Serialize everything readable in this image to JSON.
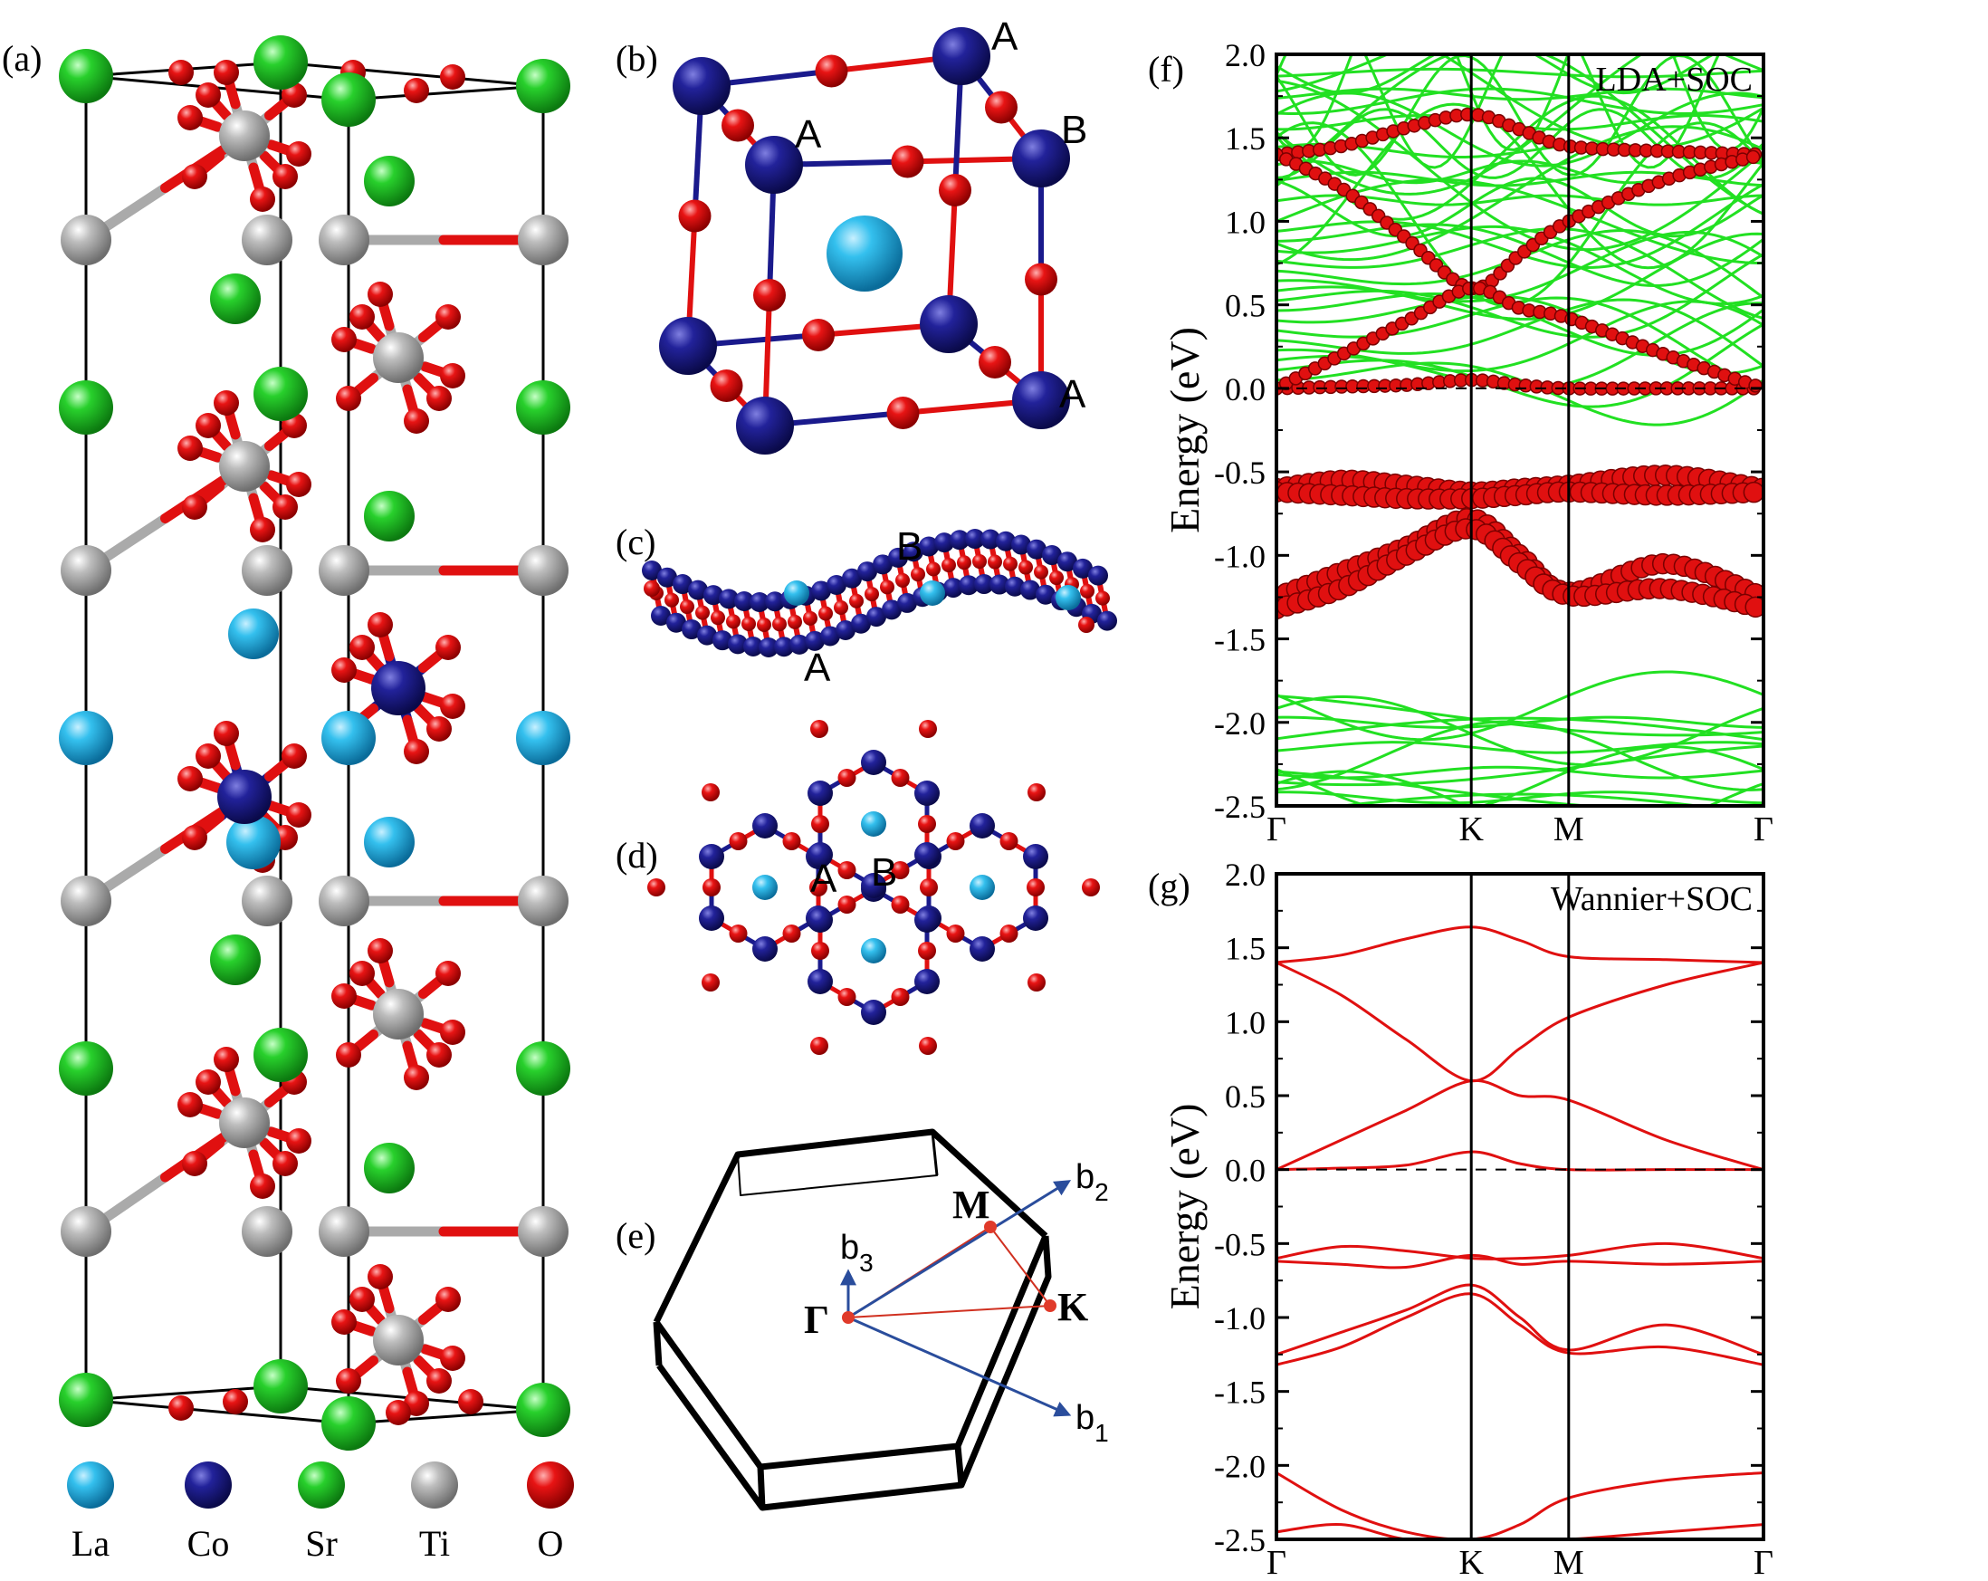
{
  "panels": {
    "a": "(a)",
    "b": "(b)",
    "c": "(c)",
    "d": "(d)",
    "e": "(e)",
    "f": "(f)",
    "g": "(g)"
  },
  "legend": {
    "items": [
      {
        "label": "La",
        "color": "#29b6e6"
      },
      {
        "label": "Co",
        "color": "#1a1a8c"
      },
      {
        "label": "Sr",
        "color": "#22cc2a"
      },
      {
        "label": "Ti",
        "color": "#b4b4b4"
      },
      {
        "label": "O",
        "color": "#e01010"
      }
    ]
  },
  "site_labels": {
    "A": "A",
    "B": "B"
  },
  "bz": {
    "gamma": "Γ",
    "K": "K",
    "M": "M",
    "b1": "b",
    "b1_sub": "1",
    "b2": "b",
    "b2_sub": "2",
    "b3": "b",
    "b3_sub": "3"
  },
  "colors": {
    "la": "#29b6e6",
    "co": "#1a1a8c",
    "sr": "#22cc2a",
    "ti": "#b4b4b4",
    "o": "#e01010",
    "band_green": "#22e022",
    "band_red": "#e01010",
    "vector_blue": "#2a4d9c"
  },
  "chart_data": [
    {
      "type": "line",
      "panel": "f",
      "annotation": "LDA+SOC",
      "ylabel": "Energy (eV)",
      "ylim": [
        -2.5,
        2.0
      ],
      "yticks": [
        "2.0",
        "1.5",
        "1.0",
        "0.5",
        "0.0",
        "-0.5",
        "-1.0",
        "-1.5",
        "-2.0",
        "-2.5"
      ],
      "kpath": [
        "Γ",
        "K",
        "M",
        "Γ"
      ],
      "kpos": [
        0,
        0.4,
        0.6,
        1.0
      ],
      "series": [
        {
          "values": [
            1.4,
            1.45,
            1.56,
            1.64,
            1.55,
            1.45,
            1.42,
            1.4
          ]
        },
        {
          "values": [
            1.4,
            1.2,
            0.9,
            0.6,
            0.8,
            1.0,
            1.25,
            1.4
          ]
        },
        {
          "values": [
            0.0,
            0.01,
            0.02,
            0.05,
            0.02,
            0.0,
            0.0,
            0.0
          ]
        },
        {
          "values": [
            0.0,
            0.2,
            0.4,
            0.6,
            0.48,
            0.42,
            0.2,
            0.0
          ]
        },
        {
          "values": [
            -0.6,
            -0.55,
            -0.58,
            -0.62,
            -0.6,
            -0.58,
            -0.52,
            -0.6
          ]
        },
        {
          "values": [
            -0.62,
            -0.64,
            -0.66,
            -0.66,
            -0.64,
            -0.62,
            -0.64,
            -0.62
          ]
        },
        {
          "values": [
            -1.25,
            -1.1,
            -0.95,
            -0.78,
            -1.0,
            -1.22,
            -1.05,
            -1.25
          ]
        },
        {
          "values": [
            -1.32,
            -1.2,
            -1.0,
            -0.84,
            -1.05,
            -1.24,
            -1.2,
            -1.32
          ]
        }
      ]
    },
    {
      "type": "line",
      "panel": "g",
      "annotation": "Wannier+SOC",
      "ylabel": "Energy (eV)",
      "ylim": [
        -2.5,
        2.0
      ],
      "yticks": [
        "2.0",
        "1.5",
        "1.0",
        "0.5",
        "0.0",
        "-0.5",
        "-1.0",
        "-1.5",
        "-2.0",
        "-2.5"
      ],
      "kpath": [
        "Γ",
        "K",
        "M",
        "Γ"
      ],
      "kpos": [
        0,
        0.4,
        0.6,
        1.0
      ],
      "series": [
        {
          "values": [
            1.4,
            1.45,
            1.56,
            1.64,
            1.55,
            1.44,
            1.42,
            1.4
          ]
        },
        {
          "values": [
            1.4,
            1.18,
            0.88,
            0.6,
            0.82,
            1.03,
            1.25,
            1.4
          ]
        },
        {
          "values": [
            0.0,
            0.01,
            0.03,
            0.12,
            0.04,
            0.0,
            0.0,
            0.0
          ]
        },
        {
          "values": [
            0.0,
            0.2,
            0.4,
            0.6,
            0.5,
            0.47,
            0.2,
            0.0
          ]
        },
        {
          "values": [
            -0.6,
            -0.52,
            -0.55,
            -0.6,
            -0.6,
            -0.58,
            -0.5,
            -0.6
          ]
        },
        {
          "values": [
            -0.62,
            -0.64,
            -0.66,
            -0.58,
            -0.64,
            -0.62,
            -0.64,
            -0.62
          ]
        },
        {
          "values": [
            -1.25,
            -1.1,
            -0.95,
            -0.78,
            -1.0,
            -1.22,
            -1.05,
            -1.25
          ]
        },
        {
          "values": [
            -1.32,
            -1.2,
            -1.0,
            -0.84,
            -1.05,
            -1.24,
            -1.2,
            -1.32
          ]
        },
        {
          "values": [
            -2.05,
            -2.3,
            -2.45,
            -2.5,
            -2.4,
            -2.22,
            -2.1,
            -2.05
          ]
        },
        {
          "values": [
            -2.45,
            -2.4,
            -2.5,
            -2.5,
            -2.5,
            -2.5,
            -2.45,
            -2.4
          ]
        }
      ]
    }
  ]
}
